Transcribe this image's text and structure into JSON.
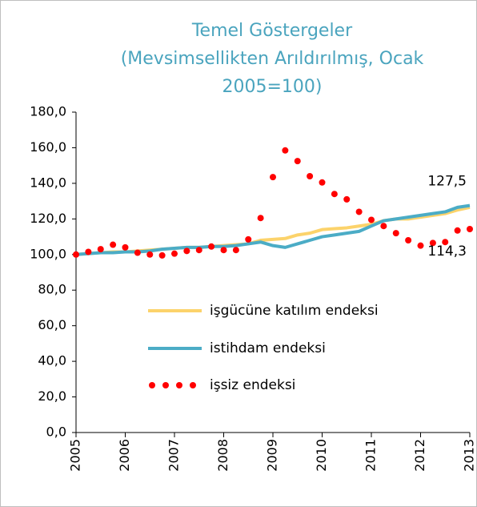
{
  "chart_data": {
    "type": "line",
    "title": [
      "Temel Göstergeler",
      "(Mevsimsellikten Arıldırılmış, Ocak",
      "2005=100)"
    ],
    "x": [
      2005,
      2005.25,
      2005.5,
      2005.75,
      2006,
      2006.25,
      2006.5,
      2006.75,
      2007,
      2007.25,
      2007.5,
      2007.75,
      2008,
      2008.25,
      2008.5,
      2008.75,
      2009,
      2009.25,
      2009.5,
      2009.75,
      2010,
      2010.25,
      2010.5,
      2010.75,
      2011,
      2011.25,
      2011.5,
      2011.75,
      2012,
      2012.25,
      2012.5,
      2012.75,
      2013
    ],
    "xlim": [
      2005,
      2013
    ],
    "xticks": [
      2005,
      2006,
      2007,
      2008,
      2009,
      2010,
      2011,
      2012,
      2013
    ],
    "ylim": [
      0,
      180
    ],
    "yticks": [
      {
        "value": 0,
        "label": "0,0"
      },
      {
        "value": 20,
        "label": "20,0"
      },
      {
        "value": 40,
        "label": "40,0"
      },
      {
        "value": 60,
        "label": "60,0"
      },
      {
        "value": 80,
        "label": "80,0"
      },
      {
        "value": 100,
        "label": "100,0"
      },
      {
        "value": 120,
        "label": "120,0"
      },
      {
        "value": 140,
        "label": "140,0"
      },
      {
        "value": 160,
        "label": "160,0"
      },
      {
        "value": 180,
        "label": "180,0"
      }
    ],
    "series": [
      {
        "name": "işgücüne katılım endeksi",
        "color": "#fcd36b",
        "marker": "line",
        "values": [
          100,
          100.5,
          101,
          101.5,
          101.5,
          102,
          102.5,
          103,
          103.5,
          104,
          104,
          104.5,
          105,
          105.5,
          106,
          108,
          108.5,
          109,
          111,
          112,
          114,
          114.5,
          115,
          116,
          117,
          119,
          120,
          120,
          121,
          122,
          123,
          125,
          126.5
        ]
      },
      {
        "name": "istihdam endeksi",
        "color": "#4bacc6",
        "marker": "line",
        "values": [
          100,
          100.5,
          101,
          101,
          101.5,
          101.5,
          102,
          103,
          103.5,
          104,
          104,
          104.5,
          104.5,
          105,
          106,
          107,
          105,
          104,
          106,
          108,
          110,
          111,
          112,
          113,
          116,
          119,
          120,
          121,
          122,
          123,
          124,
          126.5,
          127.5
        ],
        "value_labels": [
          null,
          null,
          null,
          null,
          null,
          null,
          null,
          null,
          null,
          null,
          null,
          null,
          null,
          null,
          null,
          null,
          null,
          null,
          null,
          null,
          null,
          null,
          null,
          null,
          null,
          null,
          null,
          null,
          null,
          null,
          null,
          null,
          "127,5"
        ]
      },
      {
        "name": "işsiz endeksi",
        "color": "#ff0000",
        "marker": "dot",
        "values": [
          100,
          101.5,
          103,
          105.5,
          104,
          101,
          100,
          99.5,
          100.5,
          102,
          102.5,
          104.5,
          102.5,
          102.5,
          108.5,
          120.5,
          143.5,
          158.5,
          152.5,
          144,
          140.5,
          134,
          131,
          124,
          119.5,
          116,
          112,
          108,
          105,
          106.5,
          107,
          113.5,
          114.3
        ],
        "value_labels": [
          null,
          null,
          null,
          null,
          null,
          null,
          null,
          null,
          null,
          null,
          null,
          null,
          null,
          null,
          null,
          null,
          null,
          null,
          null,
          null,
          null,
          null,
          null,
          null,
          null,
          null,
          null,
          null,
          null,
          null,
          null,
          null,
          "114,3"
        ]
      }
    ]
  }
}
